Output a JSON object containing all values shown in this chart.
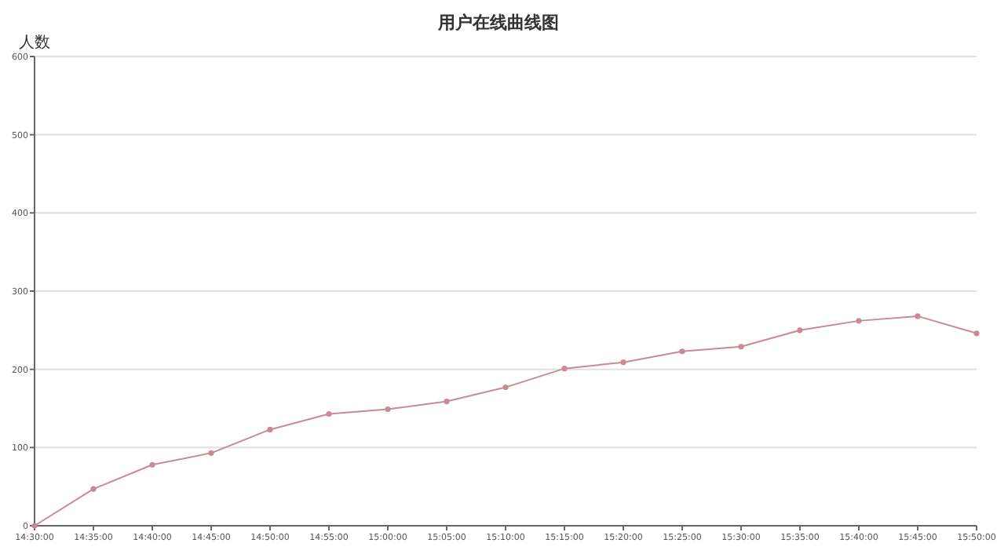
{
  "chart_data": {
    "type": "line",
    "title": "用户在线曲线图",
    "ylabel": "人数",
    "categories": [
      "14:30:00",
      "14:35:00",
      "14:40:00",
      "14:45:00",
      "14:50:00",
      "14:55:00",
      "15:00:00",
      "15:05:00",
      "15:10:00",
      "15:15:00",
      "15:20:00",
      "15:25:00",
      "15:30:00",
      "15:35:00",
      "15:40:00",
      "15:45:00",
      "15:50:00"
    ],
    "series": [
      {
        "color": "#c98a96",
        "values": [
          0,
          47,
          78,
          93,
          123,
          143,
          149,
          159,
          177,
          201,
          209,
          223,
          229,
          250,
          262,
          268,
          246
        ]
      }
    ],
    "ylim": [
      0,
      600
    ],
    "yticks": [
      0,
      100,
      200,
      300,
      400,
      500,
      600
    ],
    "grid": "y",
    "marker": "circle",
    "line_style": "solid"
  }
}
